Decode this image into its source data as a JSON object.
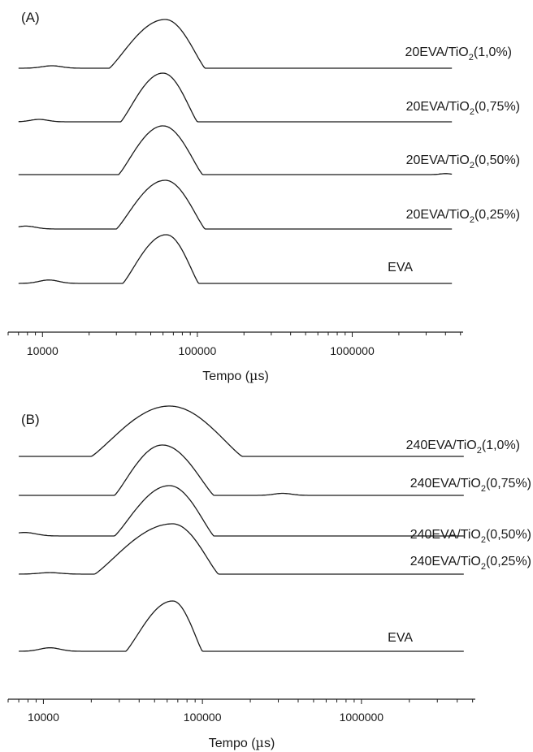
{
  "chart_data": [
    {
      "type": "line",
      "panel_label": "(A)",
      "xlabel_main": "Tempo (",
      "xlabel_mu": "µ",
      "xlabel_end": "s)",
      "x_scale": "log",
      "xlim": [
        6000,
        5200000
      ],
      "x_tick_labels": [
        "10000",
        "100000",
        "1000000"
      ],
      "x_tick_values": [
        10000,
        100000,
        1000000
      ],
      "y_axis": "none (stacked, offset curves)",
      "grid": false,
      "series": [
        {
          "base": "20EVA/TiO",
          "sub": "2",
          "suffix": "(1,0%)",
          "x_start": 7000,
          "x_end": 4400000,
          "bumps": [
            {
              "x": 11500,
              "amp": 0.05,
              "w": 0.09
            }
          ],
          "peak_x": 62000,
          "peak_amp": 1.0,
          "peak_lo": 27000,
          "peak_hi": 112000
        },
        {
          "base": "20EVA/TiO",
          "sub": "2",
          "suffix": "(0,75%)",
          "x_start": 7000,
          "x_end": 4400000,
          "bumps": [
            {
              "x": 9500,
              "amp": 0.05,
              "w": 0.08
            }
          ],
          "peak_x": 60000,
          "peak_amp": 1.0,
          "peak_lo": 32000,
          "peak_hi": 100000
        },
        {
          "base": "20EVA/TiO",
          "sub": "2",
          "suffix": "(0,50%)",
          "x_start": 7000,
          "x_end": 4400000,
          "bumps": [
            {
              "x": 4000000,
              "amp": 0.02,
              "w": 0.05
            }
          ],
          "peak_x": 60000,
          "peak_amp": 1.0,
          "peak_lo": 31000,
          "peak_hi": 108000
        },
        {
          "base": "20EVA/TiO",
          "sub": "2",
          "suffix": "(0,25%)",
          "x_start": 7000,
          "x_end": 4400000,
          "bumps": [
            {
              "x": 7800,
              "amp": 0.06,
              "w": 0.09
            }
          ],
          "peak_x": 62000,
          "peak_amp": 1.0,
          "peak_lo": 30000,
          "peak_hi": 112000
        },
        {
          "base": "EVA",
          "sub": "",
          "suffix": "",
          "x_start": 7000,
          "x_end": 4400000,
          "bumps": [
            {
              "x": 11000,
              "amp": 0.07,
              "w": 0.09
            }
          ],
          "peak_x": 63000,
          "peak_amp": 1.0,
          "peak_lo": 33000,
          "peak_hi": 102000
        }
      ]
    },
    {
      "type": "line",
      "panel_label": "(B)",
      "xlabel_main": "Tempo (",
      "xlabel_mu": "µ",
      "xlabel_end": "s)",
      "x_scale": "log",
      "xlim": [
        6000,
        5200000
      ],
      "x_tick_labels": [
        "10000",
        "100000",
        "1000000"
      ],
      "x_tick_values": [
        10000,
        100000,
        1000000
      ],
      "y_axis": "none (stacked, offset curves)",
      "grid": false,
      "series": [
        {
          "base": "240EVA/TiO",
          "sub": "2",
          "suffix": "(1,0%)",
          "x_start": 7000,
          "x_end": 4400000,
          "bumps": [],
          "peak_x": 62000,
          "peak_amp": 1.0,
          "peak_lo": 20000,
          "peak_hi": 178000
        },
        {
          "base": "240EVA/TiO",
          "sub": "2",
          "suffix": "(0,75%)",
          "x_start": 7000,
          "x_end": 4400000,
          "bumps": [
            {
              "x": 320000,
              "amp": 0.04,
              "w": 0.08
            }
          ],
          "peak_x": 56000,
          "peak_amp": 1.0,
          "peak_lo": 28000,
          "peak_hi": 118000
        },
        {
          "base": "240EVA/TiO",
          "sub": "2",
          "suffix": "(0,50%)",
          "x_start": 7000,
          "x_end": 4400000,
          "bumps": [
            {
              "x": 7600,
              "amp": 0.07,
              "w": 0.1
            }
          ],
          "peak_x": 62000,
          "peak_amp": 1.0,
          "peak_lo": 28000,
          "peak_hi": 118000
        },
        {
          "base": "240EVA/TiO",
          "sub": "2",
          "suffix": "(0,25%)",
          "x_start": 7000,
          "x_end": 4400000,
          "bumps": [
            {
              "x": 11000,
              "amp": 0.03,
              "w": 0.1
            }
          ],
          "peak_x": 65000,
          "peak_amp": 1.0,
          "peak_lo": 21000,
          "peak_hi": 126000
        },
        {
          "base": "EVA",
          "sub": "",
          "suffix": "",
          "x_start": 7000,
          "x_end": 4400000,
          "bumps": [
            {
              "x": 11000,
              "amp": 0.07,
              "w": 0.09
            }
          ],
          "peak_x": 65000,
          "peak_amp": 1.0,
          "peak_lo": 33000,
          "peak_hi": 100000
        }
      ]
    }
  ]
}
